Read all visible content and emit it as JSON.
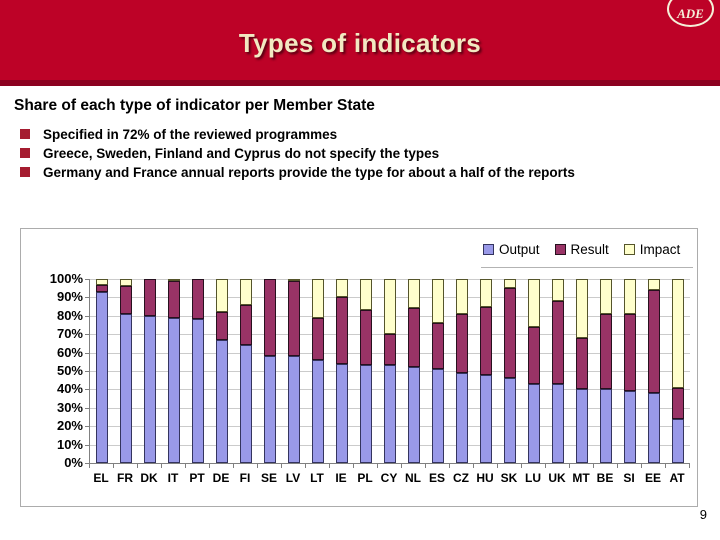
{
  "slide": {
    "title": "Types of indicators",
    "logo_text": "ADE",
    "page_number": "9"
  },
  "content": {
    "heading": "Share of each type of indicator per Member State",
    "bullets": [
      "Specified in 72% of the reviewed programmes",
      "Greece, Sweden, Finland and Cyprus do not specify the types",
      "Germany and France annual reports provide the type for about a half of the reports"
    ]
  },
  "colors": {
    "header_red": "#BD0227",
    "header_strip_dark_red": "#8C0120",
    "title_cream": "#F2E9C2",
    "bullet_marker_red": "#A51C30",
    "gridline_gray": "#CBCBCB",
    "axis_gray": "#808080"
  },
  "chart_data": {
    "type": "bar",
    "stacked": true,
    "stacked_to_100_percent": true,
    "title": "",
    "xlabel": "",
    "ylabel": "",
    "grid": true,
    "legend_position": "top-right",
    "categories": [
      "EL",
      "FR",
      "DK",
      "IT",
      "PT",
      "DE",
      "FI",
      "SE",
      "LV",
      "LT",
      "IE",
      "PL",
      "CY",
      "NL",
      "ES",
      "CZ",
      "HU",
      "SK",
      "LU",
      "UK",
      "MT",
      "BE",
      "SI",
      "EE",
      "AT"
    ],
    "series": [
      {
        "name": "Output",
        "color": "#9999E8",
        "border": "#34345E",
        "values": [
          93,
          81,
          80,
          79,
          78,
          67,
          64,
          58,
          58,
          56,
          54,
          53,
          53,
          52,
          51,
          49,
          48,
          46,
          43,
          43,
          40,
          40,
          39,
          38,
          24
        ]
      },
      {
        "name": "Result",
        "color": "#993366",
        "border": "#27101E",
        "values": [
          4,
          15,
          20,
          20,
          22,
          15,
          22,
          42,
          41,
          23,
          36,
          30,
          17,
          32,
          25,
          32,
          37,
          49,
          31,
          45,
          28,
          41,
          42,
          56,
          17
        ]
      },
      {
        "name": "Impact",
        "color": "#FFFFCC",
        "border": "#55552B",
        "values": [
          3,
          4,
          0,
          1,
          0,
          18,
          14,
          0,
          1,
          21,
          10,
          17,
          30,
          16,
          24,
          19,
          15,
          5,
          26,
          12,
          32,
          19,
          19,
          6,
          59
        ]
      }
    ],
    "y_axis": {
      "min": 0,
      "max": 100,
      "step": 10,
      "tick_format": "percent",
      "tick_labels": [
        "0%",
        "10%",
        "20%",
        "30%",
        "40%",
        "50%",
        "60%",
        "70%",
        "80%",
        "90%",
        "100%"
      ]
    }
  }
}
